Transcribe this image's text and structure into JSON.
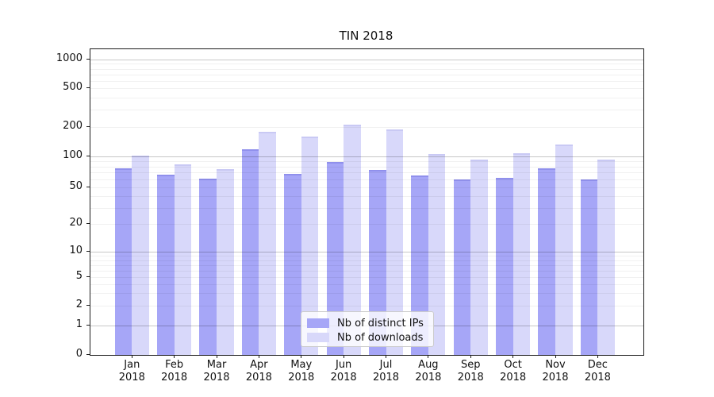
{
  "chart_data": {
    "type": "bar",
    "title": "TIN 2018",
    "xlabel": "",
    "ylabel": "",
    "yscale": "symlog (log above 1, linear segment 0 to 1)",
    "grid": true,
    "legend_position": "lower center inside plot",
    "ylim": [
      0,
      1300
    ],
    "y_ticks": [
      0,
      1,
      2,
      5,
      10,
      20,
      50,
      100,
      200,
      500,
      1000
    ],
    "categories": [
      "Jan 2018",
      "Feb 2018",
      "Mar 2018",
      "Apr 2018",
      "May 2018",
      "Jun 2018",
      "Jul 2018",
      "Aug 2018",
      "Sep 2018",
      "Oct 2018",
      "Nov 2018",
      "Dec 2018"
    ],
    "series": [
      {
        "name": "Nb of distinct IPs",
        "color": "#a6a6f7",
        "values": [
          77,
          66,
          61,
          118,
          68,
          88,
          74,
          65,
          60,
          62,
          77,
          59
        ]
      },
      {
        "name": "Nb of downloads",
        "color": "#d8d8fa",
        "values": [
          102,
          84,
          75,
          177,
          160,
          210,
          188,
          107,
          93,
          108,
          132,
          93
        ]
      }
    ]
  }
}
